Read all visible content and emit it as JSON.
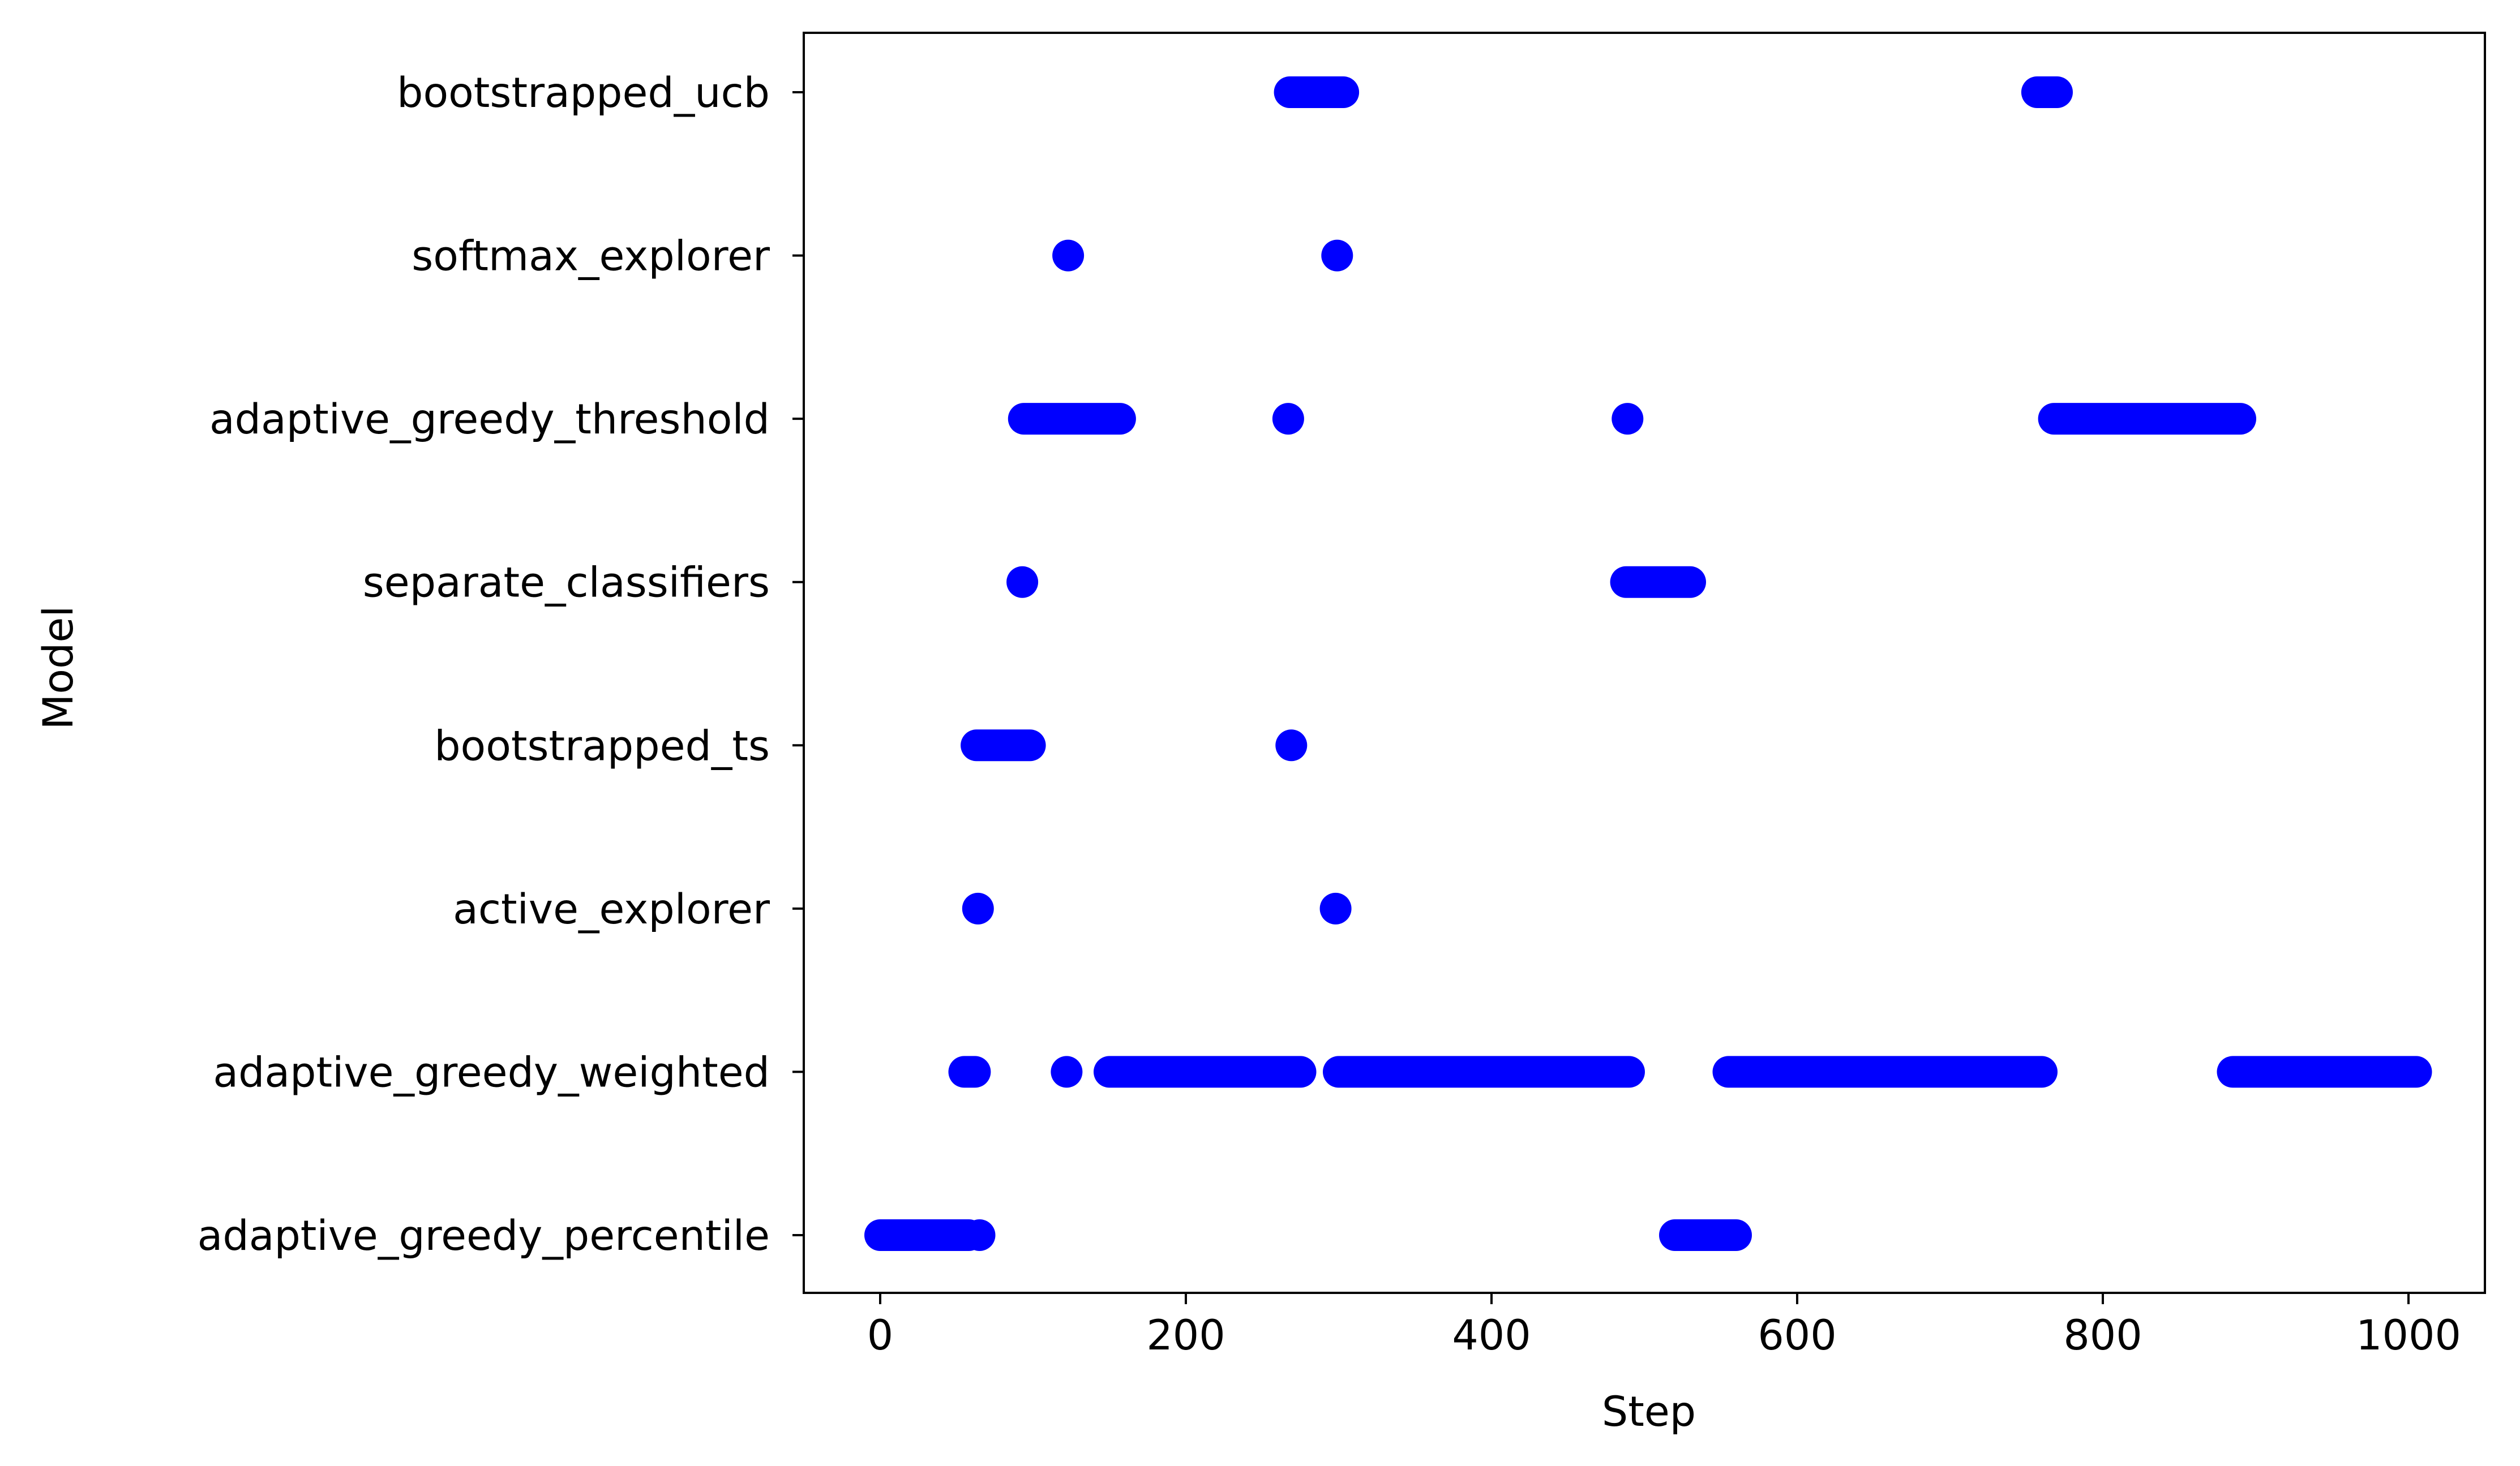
{
  "chart_data": {
    "type": "scatter",
    "title": "",
    "xlabel": "Step",
    "ylabel": "Model",
    "xlim": [
      -50,
      1050
    ],
    "xticks": [
      0,
      200,
      400,
      600,
      800,
      1000
    ],
    "xtick_labels": [
      "0",
      "200",
      "400",
      "600",
      "800",
      "1000"
    ],
    "categories": [
      "adaptive_greedy_percentile",
      "adaptive_greedy_weighted",
      "active_explorer",
      "bootstrapped_ts",
      "separate_classifiers",
      "adaptive_greedy_threshold",
      "softmax_explorer",
      "bootstrapped_ucb"
    ],
    "marker_color": "#0000ff",
    "grid": false,
    "legend": "none",
    "series": [
      {
        "category": "adaptive_greedy_percentile",
        "segments": [
          [
            0,
            58
          ],
          [
            65,
            65
          ],
          [
            520,
            560
          ]
        ]
      },
      {
        "category": "adaptive_greedy_weighted",
        "segments": [
          [
            55,
            62
          ],
          [
            122,
            122
          ],
          [
            150,
            275
          ],
          [
            300,
            490
          ],
          [
            555,
            760
          ],
          [
            885,
            1005
          ]
        ]
      },
      {
        "category": "active_explorer",
        "segments": [
          [
            64,
            64
          ],
          [
            298,
            298
          ]
        ]
      },
      {
        "category": "bootstrapped_ts",
        "segments": [
          [
            63,
            98
          ],
          [
            269,
            269
          ]
        ]
      },
      {
        "category": "separate_classifiers",
        "segments": [
          [
            93,
            93
          ],
          [
            488,
            530
          ]
        ]
      },
      {
        "category": "adaptive_greedy_threshold",
        "segments": [
          [
            94,
            157
          ],
          [
            267,
            267
          ],
          [
            489,
            489
          ],
          [
            768,
            890
          ]
        ]
      },
      {
        "category": "softmax_explorer",
        "segments": [
          [
            123,
            123
          ],
          [
            299,
            299
          ]
        ]
      },
      {
        "category": "bootstrapped_ucb",
        "segments": [
          [
            268,
            303
          ],
          [
            757,
            770
          ]
        ]
      }
    ]
  }
}
